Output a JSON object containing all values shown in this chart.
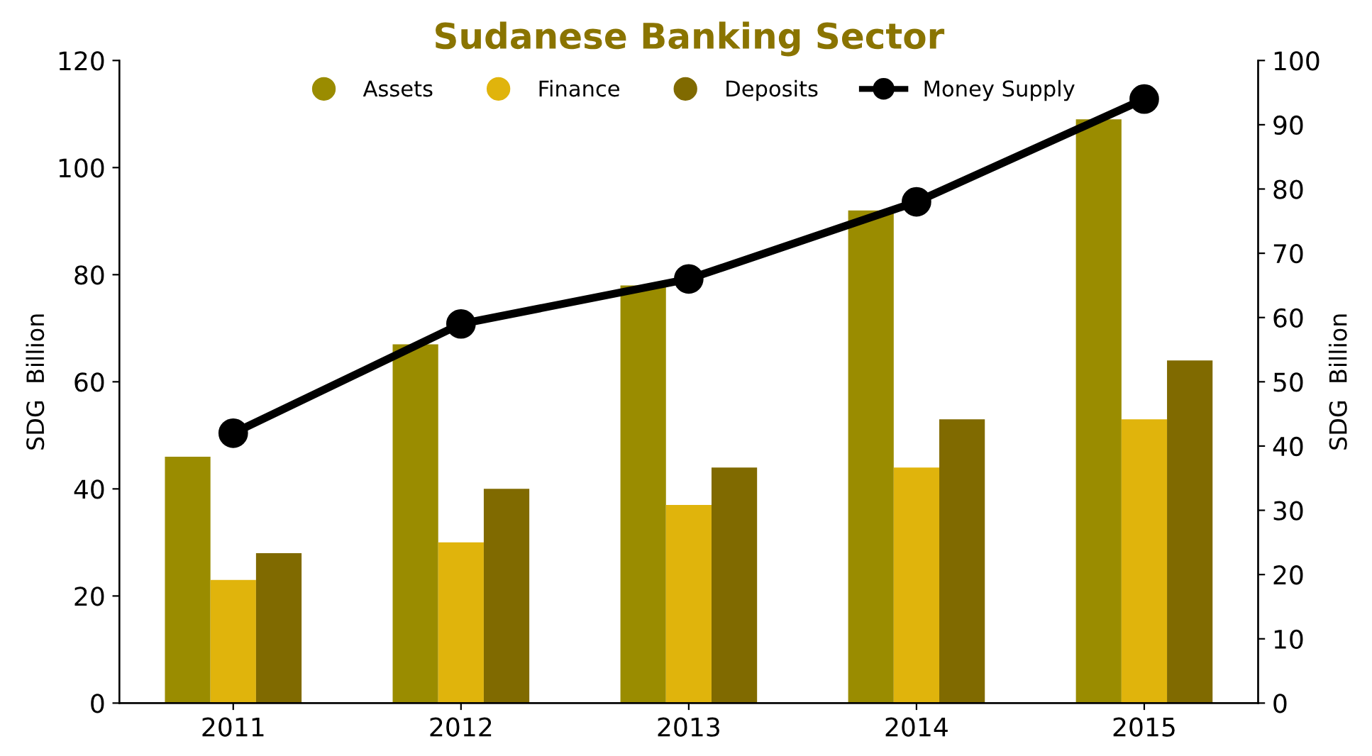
{
  "chart_data": {
    "type": "bar",
    "title": "Sudanese Banking Sector",
    "ylabel": "SDG  Billion",
    "y2label": "SDG  Billion",
    "categories": [
      "2011",
      "2012",
      "2013",
      "2014",
      "2015"
    ],
    "series": [
      {
        "name": "Assets",
        "color": "#9a8c00",
        "values": [
          46,
          67,
          78,
          92,
          109
        ]
      },
      {
        "name": "Finance",
        "color": "#e0b40c",
        "values": [
          23,
          30,
          37,
          44,
          53
        ]
      },
      {
        "name": "Deposits",
        "color": "#806a00",
        "values": [
          28,
          40,
          44,
          53,
          64
        ]
      },
      {
        "name": "Money Supply",
        "type": "line",
        "axis": "y2",
        "color": "#000000",
        "marker": "circle",
        "values": [
          42,
          59,
          66,
          78,
          94
        ]
      }
    ],
    "ylim": [
      0,
      120
    ],
    "yticks": [
      0,
      20,
      40,
      60,
      80,
      100,
      120
    ],
    "y2lim": [
      0,
      100
    ],
    "y2ticks": [
      0,
      10,
      20,
      30,
      40,
      50,
      60,
      70,
      80,
      90,
      100
    ],
    "legend": "top",
    "grid": false
  }
}
